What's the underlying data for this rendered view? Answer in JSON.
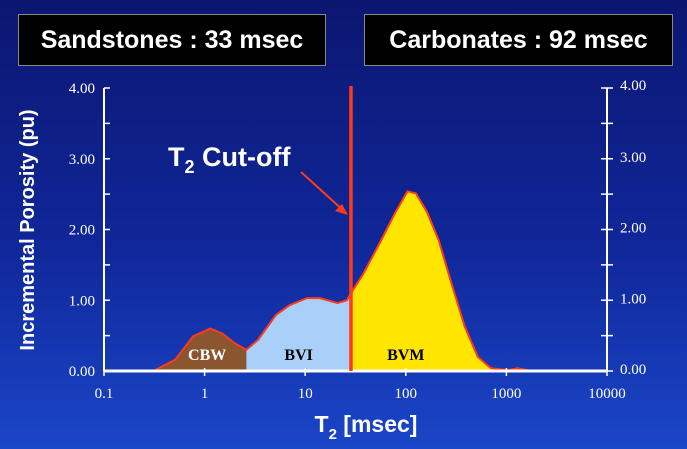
{
  "headers": {
    "left": "Sandstones : 33 msec",
    "right": "Carbonates : 92 msec"
  },
  "chart_data": {
    "type": "area",
    "title": "",
    "xlabel": "T2 [msec]",
    "xlabel_main": "T",
    "xlabel_sub": "2",
    "xlabel_rest": " [msec]",
    "ylabel": "Incremental Porosity (pu)",
    "xscale": "log",
    "xlim": [
      0.1,
      10000
    ],
    "ylim": [
      0,
      4
    ],
    "x_ticks": [
      "0.1",
      "1",
      "10",
      "100",
      "1000",
      "10000"
    ],
    "y_ticks": [
      "0.00",
      "1.00",
      "2.00",
      "3.00",
      "4.00"
    ],
    "grid": false,
    "cutoff": {
      "x": 28.5,
      "label_main": "T",
      "label_sub": "2",
      "label_rest": " Cut-off",
      "color": "#ff3a1a"
    },
    "regions": [
      {
        "name": "CBW",
        "from": 0.3,
        "to": 2.6,
        "color": "#8b5530",
        "label_color": "#ffffff"
      },
      {
        "name": "BVI",
        "from": 2.6,
        "to": 28.5,
        "color": "#a8d0f8",
        "label_color": "#000000"
      },
      {
        "name": "BVM",
        "from": 28.5,
        "to": 1800,
        "color": "#ffe600",
        "label_color": "#000000"
      }
    ],
    "x": [
      0.31,
      0.51,
      0.77,
      1.14,
      1.5,
      2.0,
      2.6,
      3.4,
      5.1,
      7.0,
      10.4,
      14,
      21,
      26,
      28.5,
      38,
      57,
      78,
      104,
      126,
      162,
      212,
      284,
      385,
      519,
      700,
      1040,
      1290,
      1740
    ],
    "y": [
      0,
      0.16,
      0.49,
      0.6,
      0.53,
      0.39,
      0.3,
      0.44,
      0.79,
      0.93,
      1.03,
      1.03,
      0.96,
      1.0,
      1.1,
      1.38,
      1.85,
      2.23,
      2.54,
      2.51,
      2.25,
      1.85,
      1.24,
      0.63,
      0.2,
      0.04,
      0.01,
      0.04,
      0
    ]
  }
}
